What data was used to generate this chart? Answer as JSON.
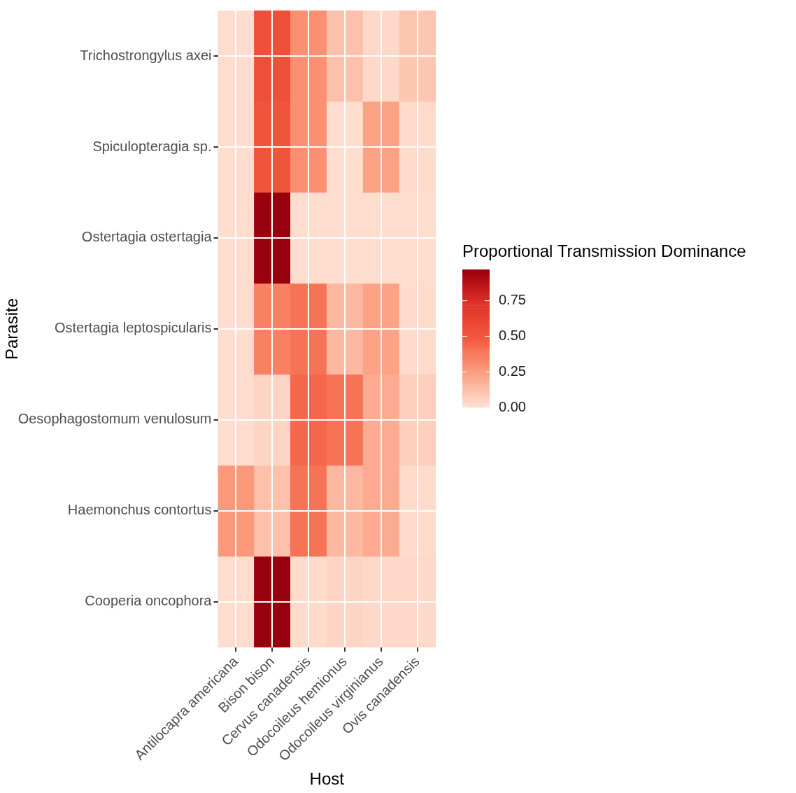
{
  "chart_data": {
    "type": "heatmap",
    "xlabel": "Host",
    "ylabel": "Parasite",
    "clabel": "Proportional Transmission Dominance",
    "categories": [
      "Antilocapra americana",
      "Bison bison",
      "Cervus canadensis",
      "Odocoileus hemionus",
      "Odocoileus virginianus",
      "Ovis canadensis"
    ],
    "y_categories": [
      "Trichostrongylus axei",
      "Spiculopteragia sp.",
      "Ostertagia ostertagia",
      "Ostertagia leptospicularis",
      "Oesophagostomum venulosum",
      "Haemonchus contortus",
      "Cooperia oncophora"
    ],
    "cells": [
      [
        0.01,
        0.55,
        0.3,
        0.12,
        0.03,
        0.1
      ],
      [
        0.01,
        0.52,
        0.3,
        0.01,
        0.24,
        0.02
      ],
      [
        0.01,
        0.97,
        0.01,
        0.01,
        0.01,
        0.01
      ],
      [
        0.01,
        0.35,
        0.4,
        0.15,
        0.23,
        0.02
      ],
      [
        0.01,
        0.04,
        0.44,
        0.4,
        0.2,
        0.07
      ],
      [
        0.27,
        0.12,
        0.4,
        0.15,
        0.2,
        0.02
      ],
      [
        0.01,
        0.97,
        0.02,
        0.04,
        0.03,
        0.03
      ]
    ],
    "clim": [
      0,
      0.97
    ],
    "cticks": [
      {
        "value": 0,
        "label": "0.00"
      },
      {
        "value": 0.25,
        "label": "0.25"
      },
      {
        "value": 0.5,
        "label": "0.50"
      },
      {
        "value": 0.75,
        "label": "0.75"
      }
    ],
    "grid": true
  }
}
